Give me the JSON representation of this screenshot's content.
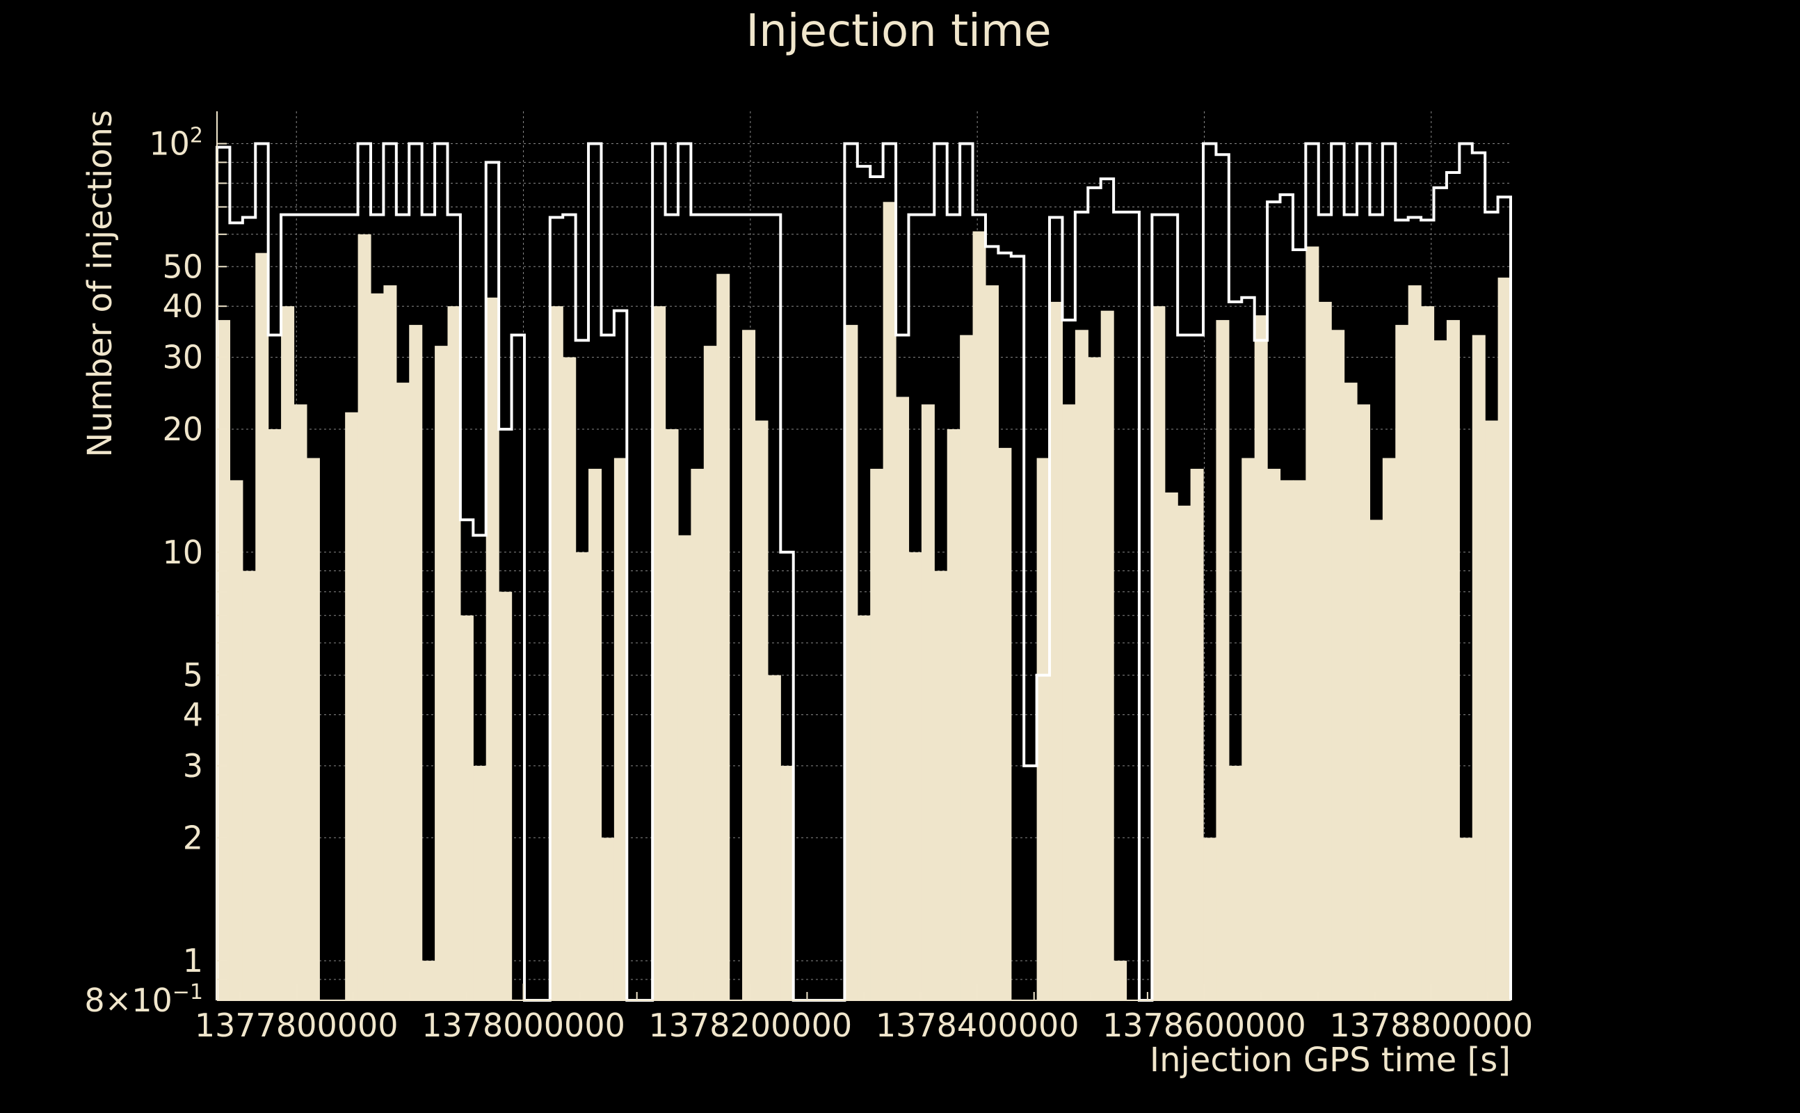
{
  "chart_data": {
    "type": "bar",
    "title": "Injection time",
    "xlabel": "Injection GPS time [s]",
    "ylabel": "Number of injections",
    "yscale": "log",
    "ylim": [
      0.8,
      120
    ],
    "xlim": [
      1377730000,
      1378870000
    ],
    "grid": true,
    "colors": {
      "background": "#000000",
      "fill": "#efe5cb",
      "line": "#ffffff",
      "text": "#f0e6cc"
    },
    "x_ticks": [
      {
        "value": 1377800000,
        "label": "1377800000"
      },
      {
        "value": 1378000000,
        "label": "1378000000"
      },
      {
        "value": 1378200000,
        "label": "1378200000"
      },
      {
        "value": 1378400000,
        "label": "1378400000"
      },
      {
        "value": 1378600000,
        "label": "1378600000"
      },
      {
        "value": 1378800000,
        "label": "1378800000"
      }
    ],
    "y_ticks": [
      {
        "value": 0.8,
        "base": "8×10",
        "exp": "−1"
      },
      {
        "value": 1,
        "base": "1",
        "exp": ""
      },
      {
        "value": 2,
        "base": "2",
        "exp": ""
      },
      {
        "value": 3,
        "base": "3",
        "exp": ""
      },
      {
        "value": 4,
        "base": "4",
        "exp": ""
      },
      {
        "value": 5,
        "base": "5",
        "exp": ""
      },
      {
        "value": 10,
        "base": "10",
        "exp": ""
      },
      {
        "value": 20,
        "base": "20",
        "exp": ""
      },
      {
        "value": 30,
        "base": "30",
        "exp": ""
      },
      {
        "value": 40,
        "base": "40",
        "exp": ""
      },
      {
        "value": 50,
        "base": "50",
        "exp": ""
      },
      {
        "value": 100,
        "base": "10",
        "exp": "2"
      }
    ],
    "bin_edges": [
      1377730000,
      1378870000
    ],
    "n_bins": 101,
    "series": [
      {
        "style": "filled",
        "values": [
          37,
          15,
          9,
          54,
          20,
          40,
          23,
          17,
          0,
          0,
          22,
          60,
          43,
          45,
          26,
          36,
          1,
          32,
          40,
          7,
          3,
          42,
          8,
          0,
          0,
          0,
          40,
          30,
          10,
          16,
          2,
          17,
          0,
          0,
          40,
          20,
          11,
          16,
          32,
          48,
          0,
          35,
          21,
          5,
          3,
          0,
          0,
          0,
          0,
          36,
          7,
          16,
          72,
          24,
          10,
          23,
          9,
          20,
          34,
          61,
          45,
          18,
          0,
          0,
          17,
          41,
          23,
          35,
          30,
          39,
          1,
          0,
          0,
          40,
          14,
          13,
          16,
          2,
          37,
          3,
          17,
          38,
          16,
          15,
          15,
          56,
          41,
          35,
          26,
          23,
          12,
          17,
          36,
          45,
          40,
          33,
          37,
          2,
          34,
          21,
          47
        ]
      },
      {
        "style": "outline",
        "values": [
          98,
          64,
          66,
          100,
          34,
          67,
          67,
          67,
          67,
          67,
          67,
          100,
          67,
          100,
          67,
          100,
          67,
          100,
          67,
          12,
          11,
          90,
          20,
          34,
          0,
          0,
          66,
          67,
          33,
          100,
          34,
          39,
          0,
          0,
          100,
          67,
          100,
          67,
          67,
          67,
          67,
          67,
          67,
          67,
          10,
          0,
          0,
          0,
          0,
          100,
          88,
          83,
          100,
          34,
          67,
          67,
          100,
          67,
          100,
          67,
          56,
          54,
          53,
          3,
          5,
          66,
          37,
          68,
          78,
          82,
          68,
          68,
          0,
          67,
          67,
          34,
          34,
          100,
          94,
          41,
          42,
          33,
          72,
          75,
          55,
          100,
          67,
          100,
          67,
          100,
          67,
          100,
          65,
          66,
          65,
          78,
          85,
          100,
          95,
          68,
          74
        ]
      }
    ]
  }
}
